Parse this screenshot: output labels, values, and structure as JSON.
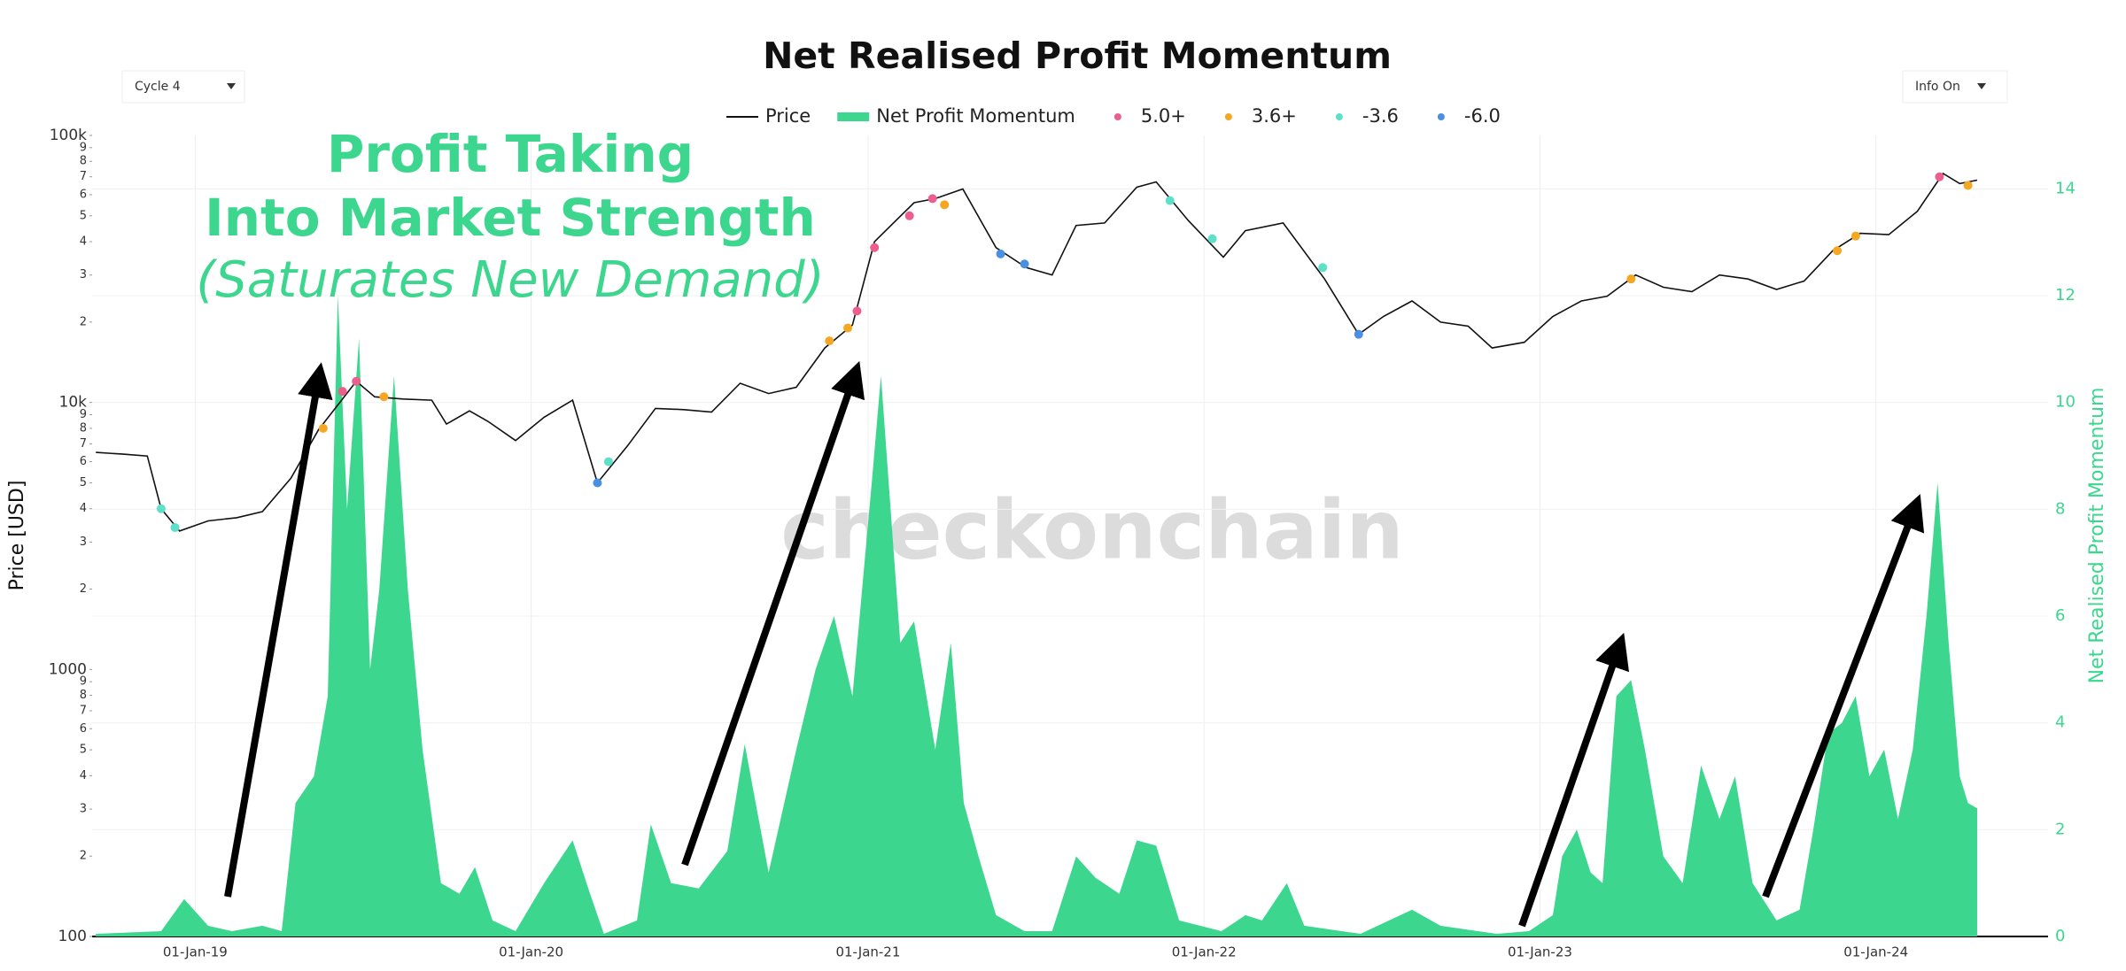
{
  "chart_data": {
    "type": "line",
    "title": "Net Realised Profit Momentum",
    "annotations": [
      "Profit Taking",
      "Into Market Strength",
      "(Saturates New Demand)"
    ],
    "watermark": "checkonchain",
    "controls": {
      "cycle": "Cycle 4",
      "info": "Info On"
    },
    "ylabel": "Price [USD]",
    "y2label": "Net Realised Profit Momentum",
    "yscale": "log",
    "grid": true,
    "legend": "top",
    "xlim": [
      "2018-09-11",
      "2024-07-06"
    ],
    "xticks": [
      {
        "value": "2019-01-01",
        "label": "01-Jan-19"
      },
      {
        "value": "2020-01-01",
        "label": "01-Jan-20"
      },
      {
        "value": "2021-01-01",
        "label": "01-Jan-21"
      },
      {
        "value": "2022-01-01",
        "label": "01-Jan-22"
      },
      {
        "value": "2023-01-01",
        "label": "01-Jan-23"
      },
      {
        "value": "2024-01-01",
        "label": "01-Jan-24"
      }
    ],
    "ylim": [
      100,
      100000
    ],
    "yticks": [
      100,
      {
        "value": 200,
        "label": "2"
      },
      {
        "value": 300,
        "label": "3"
      },
      {
        "value": 400,
        "label": "4"
      },
      {
        "value": 500,
        "label": "5"
      },
      {
        "value": 600,
        "label": "6"
      },
      {
        "value": 700,
        "label": "7"
      },
      {
        "value": 800,
        "label": "8"
      },
      {
        "value": 900,
        "label": "9"
      },
      1000,
      {
        "value": 2000,
        "label": "2"
      },
      {
        "value": 3000,
        "label": "3"
      },
      {
        "value": 4000,
        "label": "4"
      },
      {
        "value": 5000,
        "label": "5"
      },
      {
        "value": 6000,
        "label": "6"
      },
      {
        "value": 7000,
        "label": "7"
      },
      {
        "value": 8000,
        "label": "8"
      },
      {
        "value": 9000,
        "label": "9"
      },
      {
        "value": 10000,
        "label": "10k"
      },
      {
        "value": 20000,
        "label": "2"
      },
      {
        "value": 30000,
        "label": "3"
      },
      {
        "value": 40000,
        "label": "4"
      },
      {
        "value": 50000,
        "label": "5"
      },
      {
        "value": 60000,
        "label": "6"
      },
      {
        "value": 70000,
        "label": "7"
      },
      {
        "value": 80000,
        "label": "8"
      },
      {
        "value": 90000,
        "label": "9"
      },
      {
        "value": 100000,
        "label": "100k"
      }
    ],
    "y2lim": [
      0,
      15
    ],
    "y2ticks": [
      0,
      2,
      4,
      6,
      8,
      10,
      12,
      14
    ],
    "series": [
      {
        "name": "Net Profit Momentum",
        "type": "area",
        "axis": "y2",
        "color": "#3dd68f",
        "x": [
          "2018-09-15",
          "2018-11-25",
          "2018-12-20",
          "2019-01-15",
          "2019-02-10",
          "2019-03-15",
          "2019-04-05",
          "2019-04-20",
          "2019-05-10",
          "2019-05-25",
          "2019-06-05",
          "2019-06-15",
          "2019-06-28",
          "2019-07-10",
          "2019-07-20",
          "2019-08-05",
          "2019-08-20",
          "2019-09-05",
          "2019-09-25",
          "2019-10-15",
          "2019-11-01",
          "2019-11-20",
          "2019-12-15",
          "2020-01-15",
          "2020-02-15",
          "2020-03-05",
          "2020-03-20",
          "2020-04-25",
          "2020-05-10",
          "2020-06-01",
          "2020-07-01",
          "2020-08-01",
          "2020-08-20",
          "2020-09-15",
          "2020-10-15",
          "2020-11-05",
          "2020-11-25",
          "2020-12-15",
          "2021-01-05",
          "2021-01-15",
          "2021-02-05",
          "2021-02-20",
          "2021-03-15",
          "2021-04-01",
          "2021-04-15",
          "2021-05-01",
          "2021-05-20",
          "2021-06-20",
          "2021-07-20",
          "2021-08-15",
          "2021-09-05",
          "2021-10-01",
          "2021-10-20",
          "2021-11-10",
          "2021-12-05",
          "2022-01-20",
          "2022-02-15",
          "2022-03-05",
          "2022-04-01",
          "2022-04-20",
          "2022-06-20",
          "2022-08-15",
          "2022-09-15",
          "2022-11-15",
          "2022-12-20",
          "2023-01-15",
          "2023-01-25",
          "2023-02-10",
          "2023-02-25",
          "2023-03-10",
          "2023-03-25",
          "2023-04-10",
          "2023-04-25",
          "2023-05-15",
          "2023-06-05",
          "2023-06-25",
          "2023-07-15",
          "2023-08-01",
          "2023-08-20",
          "2023-09-15",
          "2023-10-10",
          "2023-10-25",
          "2023-11-10",
          "2023-11-25",
          "2023-12-10",
          "2023-12-25",
          "2024-01-10",
          "2024-01-25",
          "2024-02-10",
          "2024-02-25",
          "2024-03-08",
          "2024-03-20",
          "2024-04-01",
          "2024-04-10",
          "2024-04-20"
        ],
        "values": [
          0.05,
          0.1,
          0.7,
          0.2,
          0.1,
          0.2,
          0.1,
          2.5,
          3.0,
          4.5,
          12.0,
          8.0,
          11.2,
          5.0,
          6.5,
          10.5,
          6.5,
          3.5,
          1.0,
          0.8,
          1.3,
          0.3,
          0.1,
          1.0,
          1.8,
          0.8,
          0.05,
          0.3,
          2.1,
          1.0,
          0.9,
          1.6,
          3.6,
          1.2,
          3.5,
          5.0,
          6.0,
          4.5,
          8.5,
          10.5,
          5.5,
          5.9,
          3.5,
          5.5,
          2.5,
          1.5,
          0.4,
          0.1,
          0.1,
          1.5,
          1.1,
          0.8,
          1.8,
          1.7,
          0.3,
          0.1,
          0.4,
          0.3,
          1.0,
          0.2,
          0.05,
          0.5,
          0.2,
          0.05,
          0.1,
          0.4,
          1.5,
          2.0,
          1.2,
          1.0,
          4.5,
          4.8,
          3.5,
          1.5,
          1.0,
          3.2,
          2.2,
          3.0,
          1.0,
          0.3,
          0.5,
          2.0,
          3.8,
          4.0,
          4.5,
          3.0,
          3.5,
          2.2,
          3.5,
          6.0,
          8.5,
          5.5,
          3.0,
          2.5,
          2.4
        ]
      },
      {
        "name": "Price",
        "type": "line",
        "axis": "y",
        "color": "#111111",
        "x": [
          "2018-09-15",
          "2018-10-15",
          "2018-11-10",
          "2018-11-25",
          "2018-12-15",
          "2019-01-15",
          "2019-02-15",
          "2019-03-15",
          "2019-04-15",
          "2019-05-15",
          "2019-06-25",
          "2019-07-15",
          "2019-08-15",
          "2019-09-15",
          "2019-10-01",
          "2019-10-26",
          "2019-11-15",
          "2019-12-15",
          "2020-01-15",
          "2020-02-15",
          "2020-03-13",
          "2020-04-15",
          "2020-05-15",
          "2020-06-15",
          "2020-07-15",
          "2020-08-15",
          "2020-09-15",
          "2020-10-15",
          "2020-11-15",
          "2020-12-15",
          "2021-01-08",
          "2021-02-20",
          "2021-03-15",
          "2021-04-14",
          "2021-05-20",
          "2021-06-22",
          "2021-07-20",
          "2021-08-15",
          "2021-09-15",
          "2021-10-20",
          "2021-11-10",
          "2021-12-15",
          "2022-01-22",
          "2022-02-15",
          "2022-03-28",
          "2022-05-12",
          "2022-06-18",
          "2022-07-15",
          "2022-08-15",
          "2022-09-15",
          "2022-10-15",
          "2022-11-10",
          "2022-12-15",
          "2023-01-15",
          "2023-02-15",
          "2023-03-15",
          "2023-04-15",
          "2023-05-15",
          "2023-06-15",
          "2023-07-15",
          "2023-08-15",
          "2023-09-15",
          "2023-10-15",
          "2023-11-15",
          "2023-12-15",
          "2024-01-15",
          "2024-02-15",
          "2024-03-14",
          "2024-04-01",
          "2024-04-20"
        ],
        "values": [
          6500,
          6400,
          6300,
          4000,
          3300,
          3600,
          3700,
          3900,
          5200,
          7900,
          12000,
          10500,
          10300,
          10200,
          8300,
          9300,
          8500,
          7200,
          8800,
          10200,
          5000,
          6900,
          9500,
          9400,
          9200,
          11800,
          10800,
          11400,
          16000,
          19500,
          40000,
          56000,
          58000,
          63000,
          38000,
          32000,
          30000,
          46000,
          47000,
          64000,
          67000,
          48000,
          35000,
          44000,
          47000,
          29000,
          18000,
          21000,
          24000,
          20000,
          19300,
          16000,
          16800,
          21000,
          24000,
          25000,
          30000,
          27000,
          26000,
          30000,
          29000,
          26500,
          28500,
          37000,
          43000,
          42500,
          52000,
          72000,
          66000,
          68000
        ]
      },
      {
        "name": "5.0+",
        "type": "scatter",
        "axis": "y",
        "color": "#ec5f8d",
        "x": [
          "2019-06-10",
          "2019-06-25",
          "2020-12-20",
          "2021-01-08",
          "2021-02-15",
          "2021-03-12",
          "2024-03-10"
        ],
        "values": [
          11000,
          12000,
          22000,
          38000,
          50000,
          58000,
          70000
        ]
      },
      {
        "name": "3.6+",
        "type": "scatter",
        "axis": "y",
        "color": "#f5a623",
        "x": [
          "2019-05-20",
          "2019-07-25",
          "2020-11-20",
          "2020-12-10",
          "2021-03-25",
          "2023-04-10",
          "2023-11-20",
          "2023-12-10",
          "2024-04-10"
        ],
        "values": [
          8000,
          10500,
          17000,
          19000,
          55000,
          29000,
          37000,
          42000,
          65000
        ]
      },
      {
        "name": "-3.6",
        "type": "scatter",
        "axis": "y",
        "color": "#5ee0c8",
        "x": [
          "2018-11-25",
          "2018-12-10",
          "2020-03-25",
          "2021-11-25",
          "2022-01-10",
          "2022-05-10"
        ],
        "values": [
          4000,
          3400,
          6000,
          57000,
          41000,
          32000
        ]
      },
      {
        "name": "-6.0",
        "type": "scatter",
        "axis": "y",
        "color": "#4a90e2",
        "x": [
          "2020-03-13",
          "2021-05-25",
          "2021-06-20",
          "2022-06-18"
        ],
        "values": [
          5000,
          36000,
          33000,
          18000
        ]
      }
    ]
  }
}
